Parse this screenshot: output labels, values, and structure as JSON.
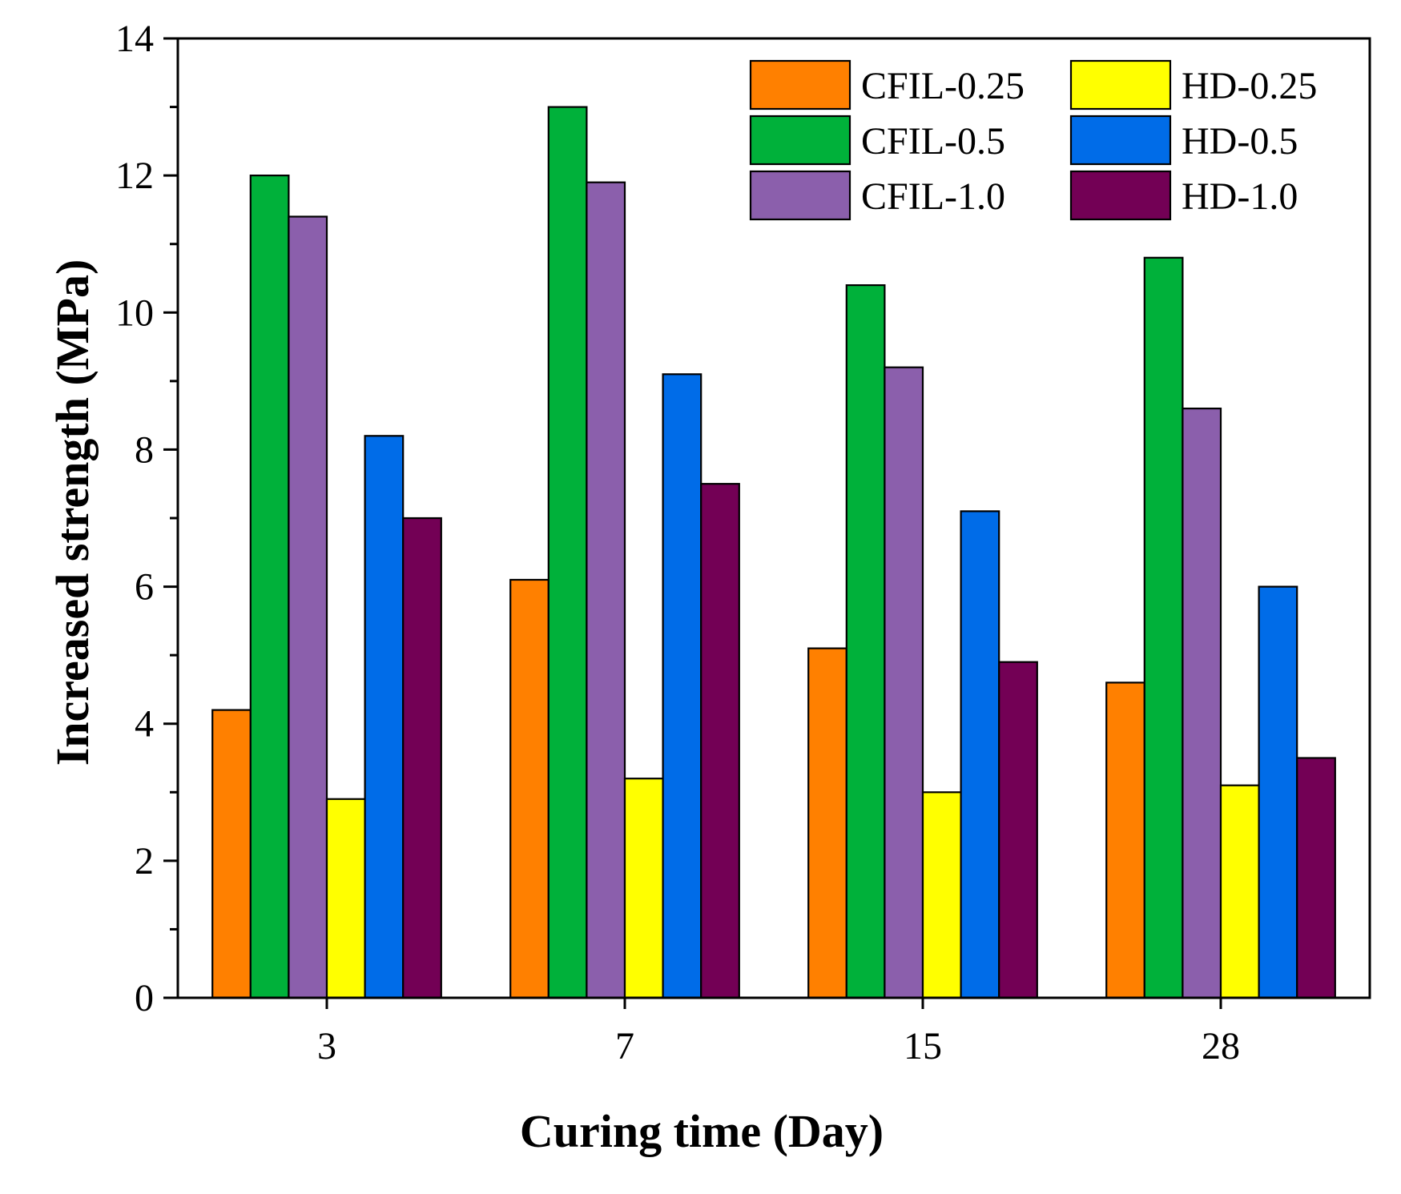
{
  "chart_data": {
    "type": "bar",
    "title": "",
    "xlabel": "Curing time (Day)",
    "ylabel": "Increased strength (MPa)",
    "categories": [
      "3",
      "7",
      "15",
      "28"
    ],
    "ylim": [
      0,
      14
    ],
    "yticks": [
      0,
      2,
      4,
      6,
      8,
      10,
      12,
      14
    ],
    "grid": false,
    "legend_position": "top-right",
    "series": [
      {
        "name": "CFIL-0.25",
        "color": "#ff8000",
        "values": [
          4.2,
          6.1,
          5.1,
          4.6
        ]
      },
      {
        "name": "CFIL-0.5",
        "color": "#00b13a",
        "values": [
          12.0,
          13.0,
          10.4,
          10.8
        ]
      },
      {
        "name": "CFIL-1.0",
        "color": "#8b5fac",
        "values": [
          11.4,
          11.9,
          9.2,
          8.6
        ]
      },
      {
        "name": "HD-0.25",
        "color": "#ffff00",
        "values": [
          2.9,
          3.2,
          3.0,
          3.1
        ]
      },
      {
        "name": "HD-0.5",
        "color": "#006ce8",
        "values": [
          8.2,
          9.1,
          7.1,
          6.0
        ]
      },
      {
        "name": "HD-1.0",
        "color": "#730055",
        "values": [
          7.0,
          7.5,
          4.9,
          3.5
        ]
      }
    ]
  }
}
